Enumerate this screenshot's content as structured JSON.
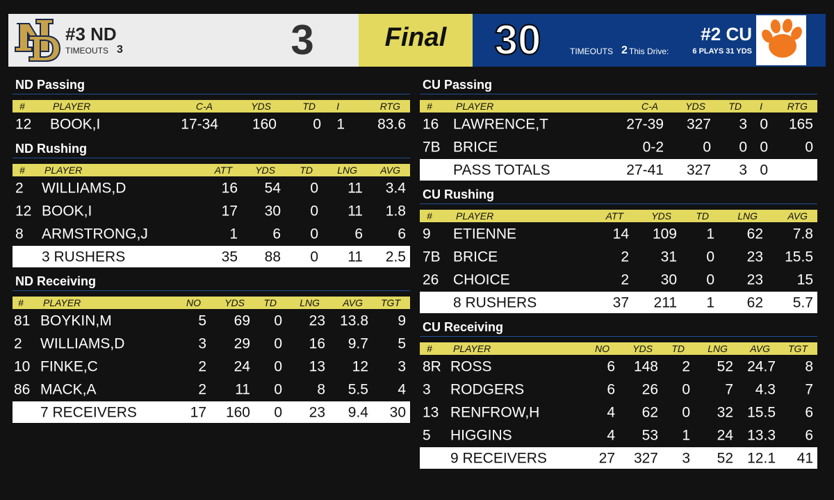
{
  "header": {
    "away": {
      "name": "#3 ND",
      "timeouts_label": "TIMEOUTS",
      "timeouts": 3,
      "score": 3
    },
    "status": "Final",
    "home": {
      "score": 30,
      "name": "#2 CU",
      "timeouts_label": "TIMEOUTS",
      "timeouts": 2,
      "drive_label": "This Drive:",
      "drive": "6 PLAYS 31 YDS"
    }
  },
  "sections": [
    {
      "title": "ND Passing",
      "columns": [
        "#",
        "PLAYER",
        "C-A",
        "YDS",
        "TD",
        "I",
        "RTG"
      ],
      "rows": [
        [
          12,
          "BOOK,I",
          "17-34",
          160,
          0,
          1,
          83.6
        ]
      ]
    },
    {
      "title": "ND Rushing",
      "columns": [
        "#",
        "PLAYER",
        "ATT",
        "YDS",
        "TD",
        "LNG",
        "AVG"
      ],
      "rows": [
        [
          2,
          "WILLIAMS,D",
          16,
          54,
          0,
          11,
          3.4
        ],
        [
          12,
          "BOOK,I",
          17,
          30,
          0,
          11,
          1.8
        ],
        [
          8,
          "ARMSTRONG,J",
          1,
          6,
          0,
          6,
          6
        ]
      ],
      "total": [
        "3 RUSHERS",
        35,
        88,
        0,
        11,
        2.5
      ]
    },
    {
      "title": "ND Receiving",
      "columns": [
        "#",
        "PLAYER",
        "NO",
        "YDS",
        "TD",
        "LNG",
        "AVG",
        "TGT"
      ],
      "rows": [
        [
          81,
          "BOYKIN,M",
          5,
          69,
          0,
          23,
          13.8,
          9
        ],
        [
          2,
          "WILLIAMS,D",
          3,
          29,
          0,
          16,
          9.7,
          5
        ],
        [
          10,
          "FINKE,C",
          2,
          24,
          0,
          13,
          12,
          3
        ],
        [
          86,
          "MACK,A",
          2,
          11,
          0,
          8,
          5.5,
          4
        ]
      ],
      "total": [
        "7 RECEIVERS",
        17,
        160,
        0,
        23,
        9.4,
        30
      ]
    },
    {
      "title": "CU Passing",
      "columns": [
        "#",
        "PLAYER",
        "C-A",
        "YDS",
        "TD",
        "I",
        "RTG"
      ],
      "rows": [
        [
          16,
          "LAWRENCE,T",
          "27-39",
          327,
          3,
          0,
          165
        ],
        [
          "7B",
          "BRICE",
          "0-2",
          0,
          0,
          0,
          0
        ]
      ],
      "total": [
        "PASS TOTALS",
        "27-41",
        327,
        3,
        0
      ]
    },
    {
      "title": "CU Rushing",
      "columns": [
        "#",
        "PLAYER",
        "ATT",
        "YDS",
        "TD",
        "LNG",
        "AVG"
      ],
      "rows": [
        [
          9,
          "ETIENNE",
          14,
          109,
          1,
          62,
          7.8
        ],
        [
          "7B",
          "BRICE",
          2,
          31,
          0,
          23,
          15.5
        ],
        [
          26,
          "CHOICE",
          2,
          30,
          0,
          23,
          15
        ]
      ],
      "total": [
        "8 RUSHERS",
        37,
        211,
        1,
        62,
        5.7
      ]
    },
    {
      "title": "CU Receiving",
      "columns": [
        "#",
        "PLAYER",
        "NO",
        "YDS",
        "TD",
        "LNG",
        "AVG",
        "TGT"
      ],
      "rows": [
        [
          "8R",
          "ROSS",
          6,
          148,
          2,
          52,
          24.7,
          8
        ],
        [
          3,
          "RODGERS",
          6,
          26,
          0,
          7,
          4.3,
          7
        ],
        [
          13,
          "RENFROW,H",
          4,
          62,
          0,
          32,
          15.5,
          6
        ],
        [
          5,
          "HIGGINS",
          4,
          53,
          1,
          24,
          13.3,
          6
        ]
      ],
      "total": [
        "9 RECEIVERS",
        27,
        327,
        3,
        52,
        12.1,
        41
      ]
    }
  ]
}
